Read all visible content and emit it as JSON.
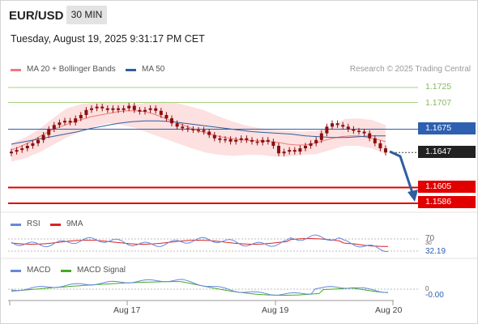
{
  "header": {
    "pair": "EUR/USD",
    "timeframe": "30 MIN",
    "datetime": "Tuesday, August 19, 2025 9:31:17 PM CET"
  },
  "legend": {
    "ma20_label": "MA 20 + Bollinger Bands",
    "ma50_label": "MA 50",
    "research": "Research © 2025 Trading Central",
    "rsi_label": "RSI",
    "rsi_ma_label": "9MA",
    "macd_label": "MACD",
    "macd_signal_label": "MACD Signal"
  },
  "colors": {
    "ma20": "#ef7a7a",
    "ma50": "#2f5f9e",
    "bollinger_fill": "#fde0e0",
    "candle": "#8b0f0f",
    "resistance": "#a8d080",
    "support": "#e00000",
    "pivot": "#2f5fb0",
    "arrow": "#2f5f9e",
    "rsi": "#6688dd",
    "rsi_ma": "#dd2222",
    "macd": "#6688dd",
    "macd_signal": "#44aa22"
  },
  "levels": {
    "r2": "1.1725",
    "r1": "1.1707",
    "pivot": "1.1675",
    "last": "1.1647",
    "s1": "1.1605",
    "s2": "1.1586"
  },
  "indicators": {
    "rsi_level_70": "70",
    "rsi_level_30": "30",
    "rsi_value": "32.19",
    "macd_zero": "0",
    "macd_value": "-0.00"
  },
  "chart_data": {
    "type": "candlestick",
    "x_tick_labels": [
      "Aug 17",
      "Aug 19",
      "Aug 20"
    ],
    "y_reference_levels": [
      1.1725,
      1.1707,
      1.1675,
      1.1647,
      1.1605,
      1.1586
    ],
    "close": [
      1.1648,
      1.165,
      1.1652,
      1.1655,
      1.1658,
      1.1662,
      1.1668,
      1.1675,
      1.168,
      1.1683,
      1.1685,
      1.1683,
      1.1688,
      1.1692,
      1.1698,
      1.17,
      1.1702,
      1.17,
      1.1698,
      1.17,
      1.1698,
      1.17,
      1.1703,
      1.1698,
      1.1696,
      1.1698,
      1.17,
      1.1697,
      1.1692,
      1.1688,
      1.1682,
      1.1678,
      1.1676,
      1.1675,
      1.1674,
      1.1674,
      1.1672,
      1.1668,
      1.1664,
      1.1662,
      1.1663,
      1.166,
      1.1662,
      1.1664,
      1.1662,
      1.166,
      1.1659,
      1.1662,
      1.166,
      1.1655,
      1.1646,
      1.1648,
      1.165,
      1.1648,
      1.1652,
      1.1655,
      1.1658,
      1.1662,
      1.167,
      1.1678,
      1.1682,
      1.168,
      1.1678,
      1.1675,
      1.1673,
      1.1672,
      1.167,
      1.1664,
      1.1658,
      1.1652,
      1.1647
    ],
    "ma20": [
      1.165,
      1.1654,
      1.1659,
      1.1665,
      1.1671,
      1.1676,
      1.168,
      1.1684,
      1.1687,
      1.169,
      1.1692,
      1.1694,
      1.1696,
      1.1697,
      1.1697,
      1.1696,
      1.1693,
      1.1689,
      1.1685,
      1.1681,
      1.1677,
      1.1673,
      1.167,
      1.1667,
      1.1665,
      1.1663,
      1.1662,
      1.1661,
      1.1661,
      1.166,
      1.1659,
      1.1657,
      1.1656,
      1.1656,
      1.1658,
      1.1661,
      1.1664,
      1.1666,
      1.1667,
      1.1667,
      1.1665,
      1.1663,
      1.166
    ],
    "ma50": [
      1.1657,
      1.166,
      1.1663,
      1.1666,
      1.1669,
      1.1672,
      1.1676,
      1.1679,
      1.1682,
      1.1684,
      1.1685,
      1.1685,
      1.1684,
      1.1682,
      1.168,
      1.1678,
      1.1676,
      1.1674,
      1.1672,
      1.1671,
      1.167,
      1.1669,
      1.1667,
      1.1666,
      1.1665,
      1.1665,
      1.1666,
      1.1667,
      1.1667
    ],
    "bollinger_upper": [
      1.1658,
      1.1665,
      1.1675,
      1.1688,
      1.17,
      1.1705,
      1.1707,
      1.1708,
      1.1707,
      1.1705,
      1.1707,
      1.1708,
      1.1706,
      1.1702,
      1.1697,
      1.169,
      1.1684,
      1.1679,
      1.1676,
      1.1674,
      1.1673,
      1.1672,
      1.1673,
      1.1677,
      1.1687,
      1.1688,
      1.1686,
      1.168
    ],
    "bollinger_lower": [
      1.1636,
      1.164,
      1.1647,
      1.1656,
      1.1665,
      1.1672,
      1.1678,
      1.1682,
      1.168,
      1.1676,
      1.167,
      1.1664,
      1.1658,
      1.1652,
      1.1647,
      1.1644,
      1.1643,
      1.1644,
      1.1644,
      1.1642,
      1.1642,
      1.1644,
      1.1645,
      1.165,
      1.1655,
      1.1655,
      1.1652,
      1.1645
    ]
  }
}
